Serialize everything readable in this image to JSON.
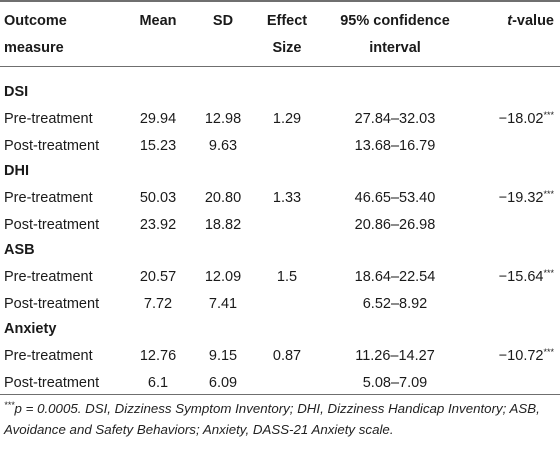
{
  "headers": {
    "outcome_line1": "Outcome",
    "outcome_line2": "measure",
    "mean": "Mean",
    "sd": "SD",
    "effect_line1": "Effect",
    "effect_line2": "Size",
    "ci_line1": "95% confidence",
    "ci_line2": "interval",
    "t_italic": "t",
    "t_rest": "-value"
  },
  "groups": [
    {
      "name": "DSI",
      "rows": [
        {
          "label": "Pre-treatment",
          "mean": "29.94",
          "sd": "12.98",
          "effect": "1.29",
          "ci": "27.84–32.03",
          "t": "−18.02",
          "t_sup": "***"
        },
        {
          "label": "Post-treatment",
          "mean": "15.23",
          "sd": "9.63",
          "effect": "",
          "ci": "13.68–16.79",
          "t": "",
          "t_sup": ""
        }
      ]
    },
    {
      "name": "DHI",
      "rows": [
        {
          "label": "Pre-treatment",
          "mean": "50.03",
          "sd": "20.80",
          "effect": "1.33",
          "ci": "46.65–53.40",
          "t": "−19.32",
          "t_sup": "***"
        },
        {
          "label": "Post-treatment",
          "mean": "23.92",
          "sd": "18.82",
          "effect": "",
          "ci": "20.86–26.98",
          "t": "",
          "t_sup": ""
        }
      ]
    },
    {
      "name": "ASB",
      "rows": [
        {
          "label": "Pre-treatment",
          "mean": "20.57",
          "sd": "12.09",
          "effect": "1.5",
          "ci": "18.64–22.54",
          "t": "−15.64",
          "t_sup": "***"
        },
        {
          "label": "Post-treatment",
          "mean": "7.72",
          "sd": "7.41",
          "effect": "",
          "ci": "6.52–8.92",
          "t": "",
          "t_sup": ""
        }
      ]
    },
    {
      "name": "Anxiety",
      "rows": [
        {
          "label": "Pre-treatment",
          "mean": "12.76",
          "sd": "9.15",
          "effect": "0.87",
          "ci": "11.26–14.27",
          "t": "−10.72",
          "t_sup": "***"
        },
        {
          "label": "Post-treatment",
          "mean": "6.1",
          "sd": "6.09",
          "effect": "",
          "ci": "5.08–7.09",
          "t": "",
          "t_sup": ""
        }
      ]
    }
  ],
  "footnote": {
    "sup": "***",
    "text": "p = 0.0005. DSI, Dizziness Symptom Inventory; DHI, Dizziness Handicap Inventory; ASB, Avoidance and Safety Behaviors; Anxiety, DASS-21 Anxiety scale."
  }
}
